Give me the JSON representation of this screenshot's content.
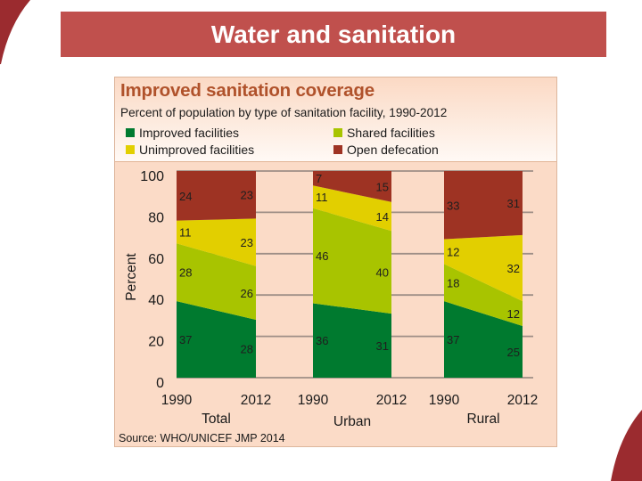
{
  "slide": {
    "title": "Water and sanitation",
    "accent_color": "#C0504D",
    "decoration_color": "#9B2B2F"
  },
  "chart_data": {
    "type": "bar",
    "stacked": true,
    "title": "Improved sanitation coverage",
    "subtitle": "Percent of population by type of sanitation facility, 1990-2012",
    "xlabel": "",
    "ylabel": "Percent",
    "ylim": [
      0,
      100
    ],
    "yticks": [
      0,
      20,
      40,
      60,
      80,
      100
    ],
    "grid": true,
    "legend_placement": "top",
    "groups": [
      "Total",
      "Urban",
      "Rural"
    ],
    "categories": [
      "1990",
      "2012"
    ],
    "series": [
      {
        "name": "Improved facilities",
        "color": "#007A2F",
        "values": [
          [
            37,
            28
          ],
          [
            36,
            31
          ],
          [
            37,
            25
          ]
        ]
      },
      {
        "name": "Shared facilities",
        "color": "#A8C400",
        "values": [
          [
            28,
            26
          ],
          [
            46,
            40
          ],
          [
            18,
            12
          ]
        ]
      },
      {
        "name": "Unimproved facilities",
        "color": "#E2CF00",
        "values": [
          [
            11,
            23
          ],
          [
            11,
            14
          ],
          [
            12,
            32
          ]
        ]
      },
      {
        "name": "Open defecation",
        "color": "#9E3323",
        "values": [
          [
            24,
            23
          ],
          [
            7,
            15
          ],
          [
            33,
            31
          ]
        ]
      }
    ],
    "legend_order": [
      0,
      1,
      2,
      3
    ],
    "source": "Source:  WHO/UNICEF JMP 2014"
  }
}
